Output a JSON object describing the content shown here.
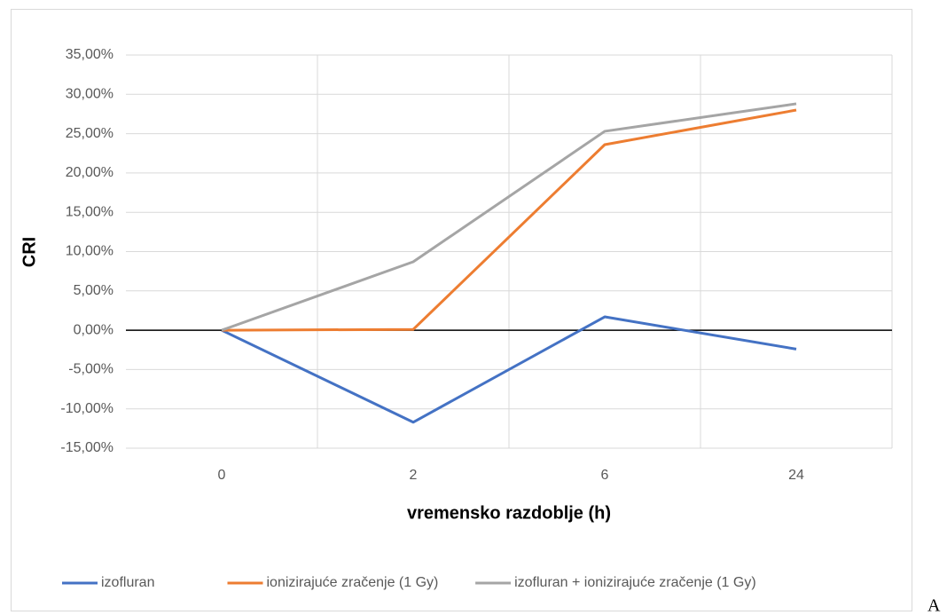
{
  "chart_data": {
    "type": "line",
    "xlabel": "vremensko razdoblje (h)",
    "ylabel": "CRI",
    "categories": [
      "0",
      "2",
      "6",
      "24"
    ],
    "series": [
      {
        "name": "izofluran",
        "color": "#4472c4",
        "values": [
          0,
          -11.7,
          1.7,
          -2.4
        ]
      },
      {
        "name": "ionizirajuće zračenje (1 Gy)",
        "color": "#ed7d31",
        "values": [
          0,
          0.1,
          23.6,
          28.0
        ]
      },
      {
        "name": "izofluran + ionizirajuće zračenje (1 Gy)",
        "color": "#a5a5a5",
        "values": [
          0,
          8.7,
          25.3,
          28.8
        ]
      }
    ],
    "ylim": [
      -15,
      35
    ],
    "yticks": [
      {
        "value": -15,
        "label": "-15,00%"
      },
      {
        "value": -10,
        "label": "-10,00%"
      },
      {
        "value": -5,
        "label": "-5,00%"
      },
      {
        "value": 0,
        "label": "0,00%"
      },
      {
        "value": 5,
        "label": "5,00%"
      },
      {
        "value": 10,
        "label": "10,00%"
      },
      {
        "value": 15,
        "label": "15,00%"
      },
      {
        "value": 20,
        "label": "20,00%"
      },
      {
        "value": 25,
        "label": "25,00%"
      },
      {
        "value": 30,
        "label": "30,00%"
      },
      {
        "value": 35,
        "label": "35,00%"
      }
    ],
    "grid": true,
    "legend": "bottom",
    "figure_label": "A"
  }
}
